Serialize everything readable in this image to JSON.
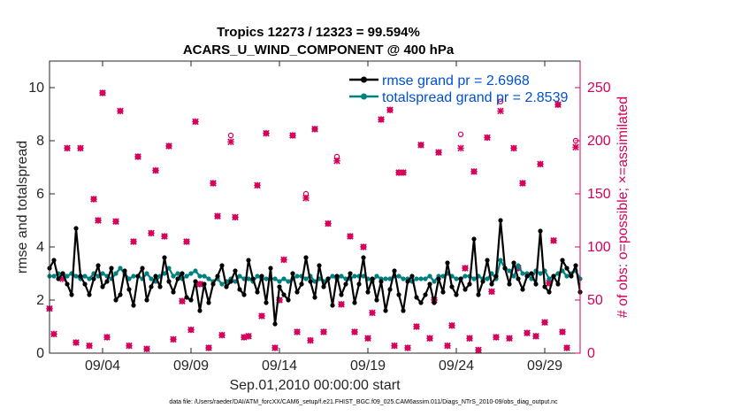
{
  "chart_data": {
    "type": "line",
    "title_line1": "Tropics 12273 / 12323 = 99.594%",
    "title_line2": "ACARS_U_WIND_COMPONENT @ 400 hPa",
    "xlabel": "Sep.01,2010 00:00:00 start",
    "ylabel_left": "rmse and totalspread",
    "ylabel_right": "# of obs: o=possible; ×=assimilated",
    "footer": "data file: /Users/raeder/DAI/ATM_forcXX/CAM6_setup/f.e21.FHIST_BGC.f09_025.CAM6assim.011/Diags_NTrS_2010-09/obs_diag_output.nc",
    "xlim": [
      1,
      31
    ],
    "ylim_left": [
      0,
      11
    ],
    "ylim_right": [
      0,
      275
    ],
    "x_ticks": [
      4,
      9,
      14,
      19,
      24,
      29
    ],
    "x_tick_labels": [
      "09/04",
      "09/09",
      "09/14",
      "09/19",
      "09/24",
      "09/29"
    ],
    "y_ticks_left": [
      0,
      2,
      4,
      6,
      8,
      10
    ],
    "y_tick_labels_left": [
      "0",
      "2",
      "4",
      "6",
      "8",
      "10"
    ],
    "y_ticks_right": [
      0,
      50,
      100,
      150,
      200,
      250
    ],
    "y_tick_labels_right": [
      "0",
      "50",
      "100",
      "150",
      "200",
      "250"
    ],
    "series": [
      {
        "name": "rmse",
        "legend": "rmse grand pr = 2.6968",
        "color": "#000000",
        "x": [
          1.0,
          1.25,
          1.5,
          1.75,
          2.0,
          2.25,
          2.5,
          2.75,
          3.0,
          3.25,
          3.5,
          3.75,
          4.0,
          4.25,
          4.5,
          4.75,
          5.0,
          5.25,
          5.5,
          5.75,
          6.0,
          6.25,
          6.5,
          6.75,
          7.0,
          7.25,
          7.5,
          7.75,
          8.0,
          8.25,
          8.5,
          8.75,
          9.0,
          9.25,
          9.5,
          9.75,
          10.0,
          10.25,
          10.5,
          10.75,
          11.0,
          11.25,
          11.5,
          11.75,
          12.0,
          12.25,
          12.5,
          12.75,
          13.0,
          13.25,
          13.5,
          13.75,
          14.0,
          14.25,
          14.5,
          14.75,
          15.0,
          15.25,
          15.5,
          15.75,
          16.0,
          16.25,
          16.5,
          16.75,
          17.0,
          17.25,
          17.5,
          17.75,
          18.0,
          18.25,
          18.5,
          18.75,
          19.0,
          19.25,
          19.5,
          19.75,
          20.0,
          20.25,
          20.5,
          20.75,
          21.0,
          21.25,
          21.5,
          21.75,
          22.0,
          22.25,
          22.5,
          22.75,
          23.0,
          23.25,
          23.5,
          23.75,
          24.0,
          24.25,
          24.5,
          24.75,
          25.0,
          25.25,
          25.5,
          25.75,
          26.0,
          26.25,
          26.5,
          26.75,
          27.0,
          27.25,
          27.5,
          27.75,
          28.0,
          28.25,
          28.5,
          28.75,
          29.0,
          29.25,
          29.5,
          29.75,
          30.0,
          30.25,
          30.5,
          30.75,
          31.0
        ],
        "values": [
          3.2,
          3.5,
          2.8,
          3.0,
          2.6,
          2.2,
          4.7,
          2.9,
          2.6,
          2.2,
          2.8,
          3.3,
          2.5,
          2.7,
          3.2,
          2.0,
          2.2,
          3.1,
          2.4,
          1.8,
          2.9,
          3.2,
          2.0,
          2.5,
          2.9,
          2.5,
          3.6,
          2.7,
          2.3,
          2.8,
          3.0,
          2.1,
          2.0,
          2.7,
          1.6,
          2.6,
          1.9,
          2.6,
          2.9,
          3.3,
          2.5,
          2.7,
          3.1,
          2.4,
          2.2,
          3.5,
          2.8,
          2.3,
          2.9,
          1.9,
          3.2,
          1.1,
          2.5,
          2.2,
          2.0,
          3.0,
          2.3,
          2.6,
          3.6,
          2.7,
          2.1,
          3.3,
          2.5,
          2.8,
          1.8,
          2.9,
          2.2,
          2.6,
          3.0,
          1.9,
          2.6,
          3.6,
          2.3,
          2.8,
          2.0,
          2.7,
          1.6,
          2.4,
          3.1,
          2.2,
          1.6,
          2.7,
          2.9,
          2.1,
          1.9,
          2.2,
          2.6,
          1.9,
          2.8,
          2.3,
          3.4,
          2.5,
          2.2,
          2.8,
          2.4,
          2.6,
          4.3,
          2.2,
          2.7,
          3.5,
          2.6,
          2.9,
          5.0,
          3.2,
          2.6,
          3.4,
          2.8,
          2.4,
          2.9,
          3.0,
          2.6,
          4.6,
          2.5,
          2.3,
          2.9,
          2.6,
          3.5,
          3.2,
          2.9,
          3.3,
          2.3
        ]
      },
      {
        "name": "totalspread",
        "legend": "totalspread grand pr = 2.8539",
        "color": "#008080",
        "x": [
          1.0,
          1.25,
          1.5,
          1.75,
          2.0,
          2.25,
          2.5,
          2.75,
          3.0,
          3.25,
          3.5,
          3.75,
          4.0,
          4.25,
          4.5,
          4.75,
          5.0,
          5.25,
          5.5,
          5.75,
          6.0,
          6.25,
          6.5,
          6.75,
          7.0,
          7.25,
          7.5,
          7.75,
          8.0,
          8.25,
          8.5,
          8.75,
          9.0,
          9.25,
          9.5,
          9.75,
          10.0,
          10.25,
          10.5,
          10.75,
          11.0,
          11.25,
          11.5,
          11.75,
          12.0,
          12.25,
          12.5,
          12.75,
          13.0,
          13.25,
          13.5,
          13.75,
          14.0,
          14.25,
          14.5,
          14.75,
          15.0,
          15.25,
          15.5,
          15.75,
          16.0,
          16.25,
          16.5,
          16.75,
          17.0,
          17.25,
          17.5,
          17.75,
          18.0,
          18.25,
          18.5,
          18.75,
          19.0,
          19.25,
          19.5,
          19.75,
          20.0,
          20.25,
          20.5,
          20.75,
          21.0,
          21.25,
          21.5,
          21.75,
          22.0,
          22.25,
          22.5,
          22.75,
          23.0,
          23.25,
          23.5,
          23.75,
          24.0,
          24.25,
          24.5,
          24.75,
          25.0,
          25.25,
          25.5,
          25.75,
          26.0,
          26.25,
          26.5,
          26.75,
          27.0,
          27.25,
          27.5,
          27.75,
          28.0,
          28.25,
          28.5,
          28.75,
          29.0,
          29.25,
          29.5,
          29.75,
          30.0,
          30.25,
          30.5,
          30.75,
          31.0
        ],
        "values": [
          2.9,
          2.9,
          3.0,
          3.0,
          2.9,
          3.0,
          2.9,
          2.8,
          2.9,
          2.8,
          3.0,
          2.9,
          3.0,
          2.9,
          2.8,
          3.0,
          3.2,
          3.0,
          2.8,
          2.9,
          2.9,
          2.8,
          3.0,
          2.8,
          2.7,
          2.9,
          3.0,
          3.2,
          2.9,
          3.0,
          2.8,
          2.9,
          3.0,
          3.1,
          2.9,
          2.9,
          2.8,
          2.7,
          2.8,
          2.6,
          2.7,
          2.8,
          2.7,
          2.9,
          2.8,
          2.8,
          2.7,
          2.9,
          2.8,
          2.8,
          2.8,
          2.8,
          2.7,
          2.8,
          2.7,
          2.8,
          2.9,
          2.9,
          2.8,
          2.9,
          2.7,
          2.8,
          2.7,
          2.8,
          2.9,
          2.8,
          2.9,
          2.8,
          2.8,
          2.9,
          2.9,
          2.9,
          2.8,
          2.7,
          2.9,
          2.8,
          2.8,
          2.8,
          2.9,
          2.9,
          2.8,
          2.8,
          2.7,
          2.8,
          2.8,
          2.8,
          2.9,
          2.7,
          2.9,
          2.9,
          3.0,
          2.9,
          2.8,
          2.8,
          2.9,
          2.9,
          2.8,
          2.9,
          2.8,
          2.8,
          3.0,
          2.8,
          3.5,
          3.2,
          3.1,
          2.9,
          3.3,
          3.0,
          3.0,
          2.8,
          3.1,
          3.0,
          3.1,
          2.8,
          2.9,
          3.0,
          3.1,
          2.9,
          3.0,
          3.1,
          2.8
        ]
      },
      {
        "name": "obs_possible",
        "axis": "right",
        "marker": "o",
        "color": "#d6005a",
        "x": [
          1.0,
          1.25,
          1.75,
          2.0,
          2.5,
          2.75,
          3.25,
          3.5,
          3.75,
          4.0,
          4.25,
          4.75,
          5.0,
          5.5,
          5.75,
          6.0,
          6.5,
          6.75,
          7.0,
          7.5,
          7.75,
          8.0,
          8.5,
          8.75,
          9.0,
          9.25,
          9.5,
          10.0,
          10.25,
          10.5,
          10.75,
          11.25,
          11.5,
          12.0,
          12.25,
          12.75,
          13.0,
          13.25,
          13.75,
          14.0,
          14.25,
          14.75,
          15.0,
          15.5,
          15.75,
          16.0,
          16.5,
          16.75,
          17.25,
          17.5,
          18.0,
          18.25,
          18.75,
          19.0,
          19.25,
          19.75,
          20.25,
          20.5,
          20.75,
          21.0,
          21.25,
          21.75,
          22.0,
          22.5,
          22.75,
          23.0,
          23.5,
          23.75,
          24.25,
          24.5,
          24.75,
          25.0,
          25.25,
          25.75,
          26.0,
          26.25,
          26.5,
          27.0,
          27.25,
          27.5,
          27.75,
          28.0,
          28.5,
          28.75,
          29.0,
          29.25,
          29.5,
          29.75,
          30.0,
          30.25,
          30.75
        ],
        "values": [
          42,
          18,
          72,
          193,
          10,
          193,
          7,
          145,
          125,
          245,
          15,
          124,
          228,
          7,
          105,
          185,
          4,
          113,
          172,
          110,
          195,
          13,
          49,
          105,
          22,
          218,
          65,
          5,
          160,
          129,
          17,
          205,
          128,
          15,
          16,
          158,
          35,
          207,
          5,
          50,
          88,
          205,
          20,
          150,
          12,
          211,
          20,
          122,
          185,
          46,
          110,
          20,
          100,
          14,
          38,
          220,
          229,
          7,
          170,
          170,
          5,
          25,
          196,
          14,
          50,
          189,
          7,
          26,
          206,
          80,
          14,
          171,
          3,
          203,
          58,
          15,
          237,
          14,
          193,
          80,
          160,
          19,
          16,
          178,
          29,
          66,
          106,
          234,
          20,
          5,
          200
        ]
      },
      {
        "name": "obs_assimilated",
        "axis": "right",
        "marker": "x",
        "color": "#d6005a",
        "x": [
          1.0,
          1.25,
          1.75,
          2.0,
          2.5,
          2.75,
          3.25,
          3.5,
          3.75,
          4.0,
          4.25,
          4.75,
          5.0,
          5.5,
          5.75,
          6.0,
          6.5,
          6.75,
          7.0,
          7.5,
          7.75,
          8.0,
          8.5,
          8.75,
          9.0,
          9.25,
          9.5,
          10.0,
          10.25,
          10.5,
          10.75,
          11.25,
          11.5,
          12.0,
          12.25,
          12.75,
          13.0,
          13.25,
          13.75,
          14.0,
          14.25,
          14.75,
          15.0,
          15.5,
          15.75,
          16.0,
          16.5,
          16.75,
          17.25,
          17.5,
          18.0,
          18.25,
          18.75,
          19.0,
          19.25,
          19.75,
          20.25,
          20.5,
          20.75,
          21.0,
          21.25,
          21.75,
          22.0,
          22.5,
          22.75,
          23.0,
          23.5,
          23.75,
          24.25,
          24.5,
          24.75,
          25.0,
          25.25,
          25.75,
          26.0,
          26.25,
          26.5,
          27.0,
          27.25,
          27.5,
          27.75,
          28.0,
          28.5,
          28.75,
          29.0,
          29.25,
          29.5,
          29.75,
          30.0,
          30.25,
          30.75
        ],
        "values": [
          42,
          18,
          70,
          193,
          10,
          193,
          7,
          145,
          125,
          245,
          15,
          124,
          228,
          7,
          105,
          185,
          4,
          113,
          172,
          110,
          195,
          13,
          49,
          105,
          22,
          218,
          65,
          5,
          160,
          129,
          17,
          199,
          128,
          15,
          16,
          158,
          35,
          207,
          5,
          50,
          88,
          205,
          20,
          146,
          12,
          211,
          20,
          122,
          181,
          46,
          110,
          20,
          100,
          14,
          38,
          220,
          229,
          7,
          170,
          170,
          5,
          25,
          196,
          14,
          50,
          189,
          7,
          26,
          193,
          80,
          14,
          171,
          3,
          203,
          58,
          15,
          228,
          14,
          193,
          80,
          160,
          19,
          16,
          178,
          29,
          66,
          106,
          234,
          20,
          5,
          194
        ]
      }
    ]
  }
}
